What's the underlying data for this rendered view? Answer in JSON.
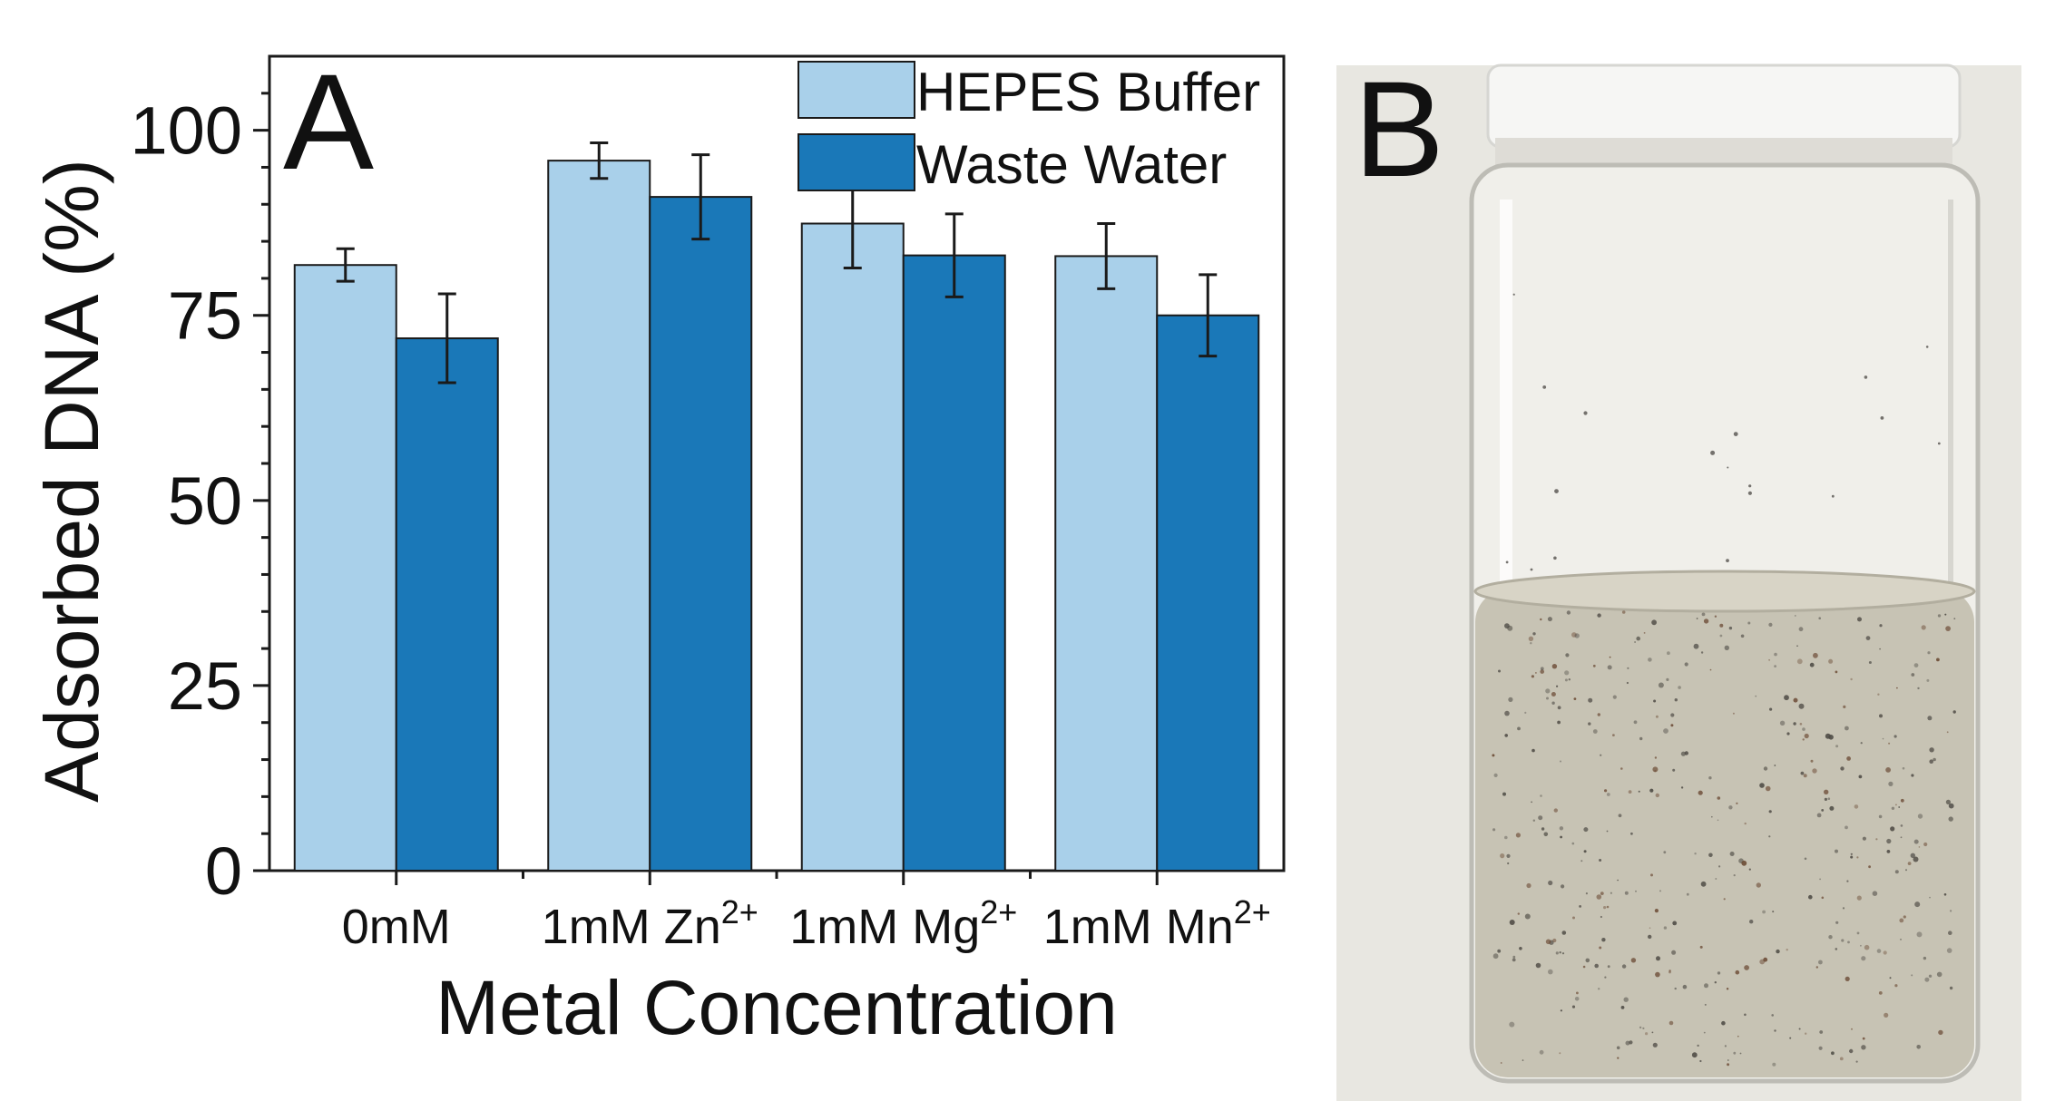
{
  "panels": {
    "a_label": "A",
    "b_label": "B"
  },
  "colors": {
    "hepes": "#a9d0ea",
    "waste": "#1a78b8",
    "axis": "#1a1a1a",
    "photo_bg": "#e9e8e3",
    "liquid": "#c9c6b8",
    "glass": "#f1f0ec",
    "cap": "#f5f5f5"
  },
  "photo": {
    "description_icon": "vial-photo"
  },
  "chart_data": {
    "type": "bar",
    "xlabel": "Metal Concentration",
    "ylabel": "Adsorbed DNA (%)",
    "ylim": [
      0,
      110
    ],
    "yticks": [
      0,
      25,
      50,
      75,
      100
    ],
    "categories": [
      {
        "base": "0mM",
        "sup": ""
      },
      {
        "base": "1mM Zn",
        "sup": "2+"
      },
      {
        "base": "1mM Mg",
        "sup": "2+"
      },
      {
        "base": "1mM Mn",
        "sup": "2+"
      }
    ],
    "series": [
      {
        "name": "HEPES Buffer",
        "color": "#a9d0ea",
        "values": [
          81.8,
          95.9,
          87.4,
          83.0
        ],
        "errors": [
          2.2,
          2.4,
          6.0,
          4.4
        ]
      },
      {
        "name": "Waste Water",
        "color": "#1a78b8",
        "values": [
          71.9,
          91.0,
          83.1,
          75.0
        ],
        "errors": [
          6.0,
          5.7,
          5.6,
          5.5
        ]
      }
    ],
    "legend": "top-right",
    "grid": false
  }
}
